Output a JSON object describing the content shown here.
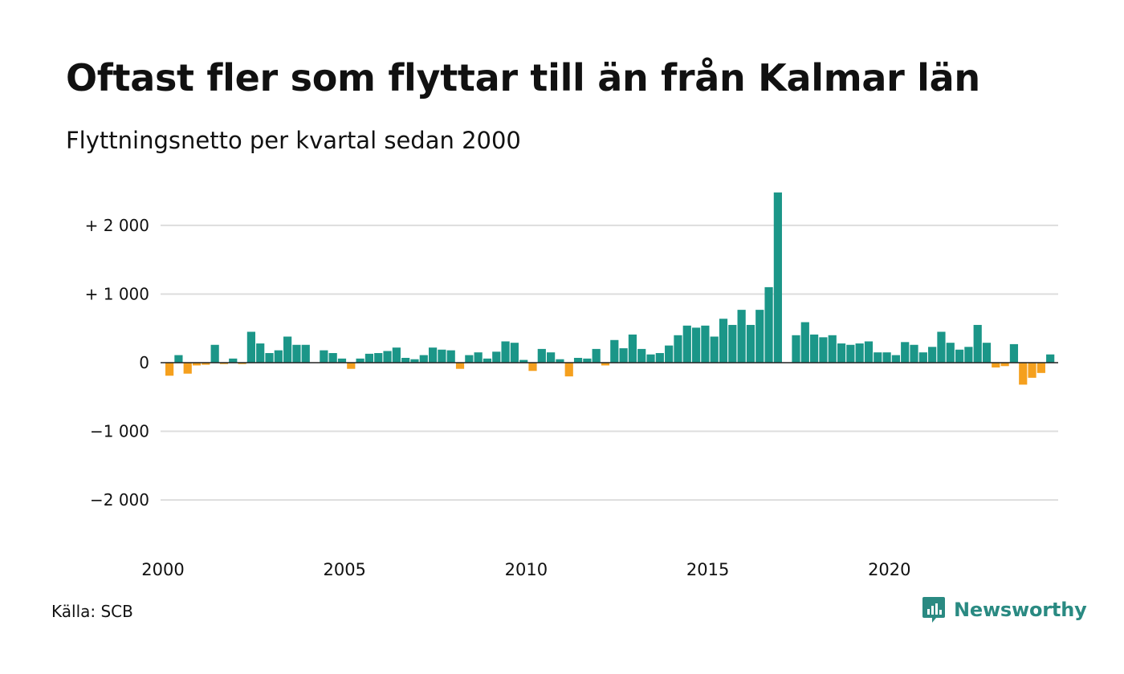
{
  "title": "Oftast fler som flyttar till än från Kalmar län",
  "subtitle": "Flyttningsnetto per kvartal sedan 2000",
  "source": "Källa: SCB",
  "brand": {
    "name": "Newsworthy",
    "icon": "newsworthy-logo-icon",
    "color": "#2a8a82"
  },
  "colors": {
    "positive": "#1b9688",
    "negative": "#f5a01e",
    "grid": "#dddddd",
    "zero_line": "#222222"
  },
  "chart_data": {
    "type": "bar",
    "title": "Oftast fler som flyttar till än från Kalmar län",
    "subtitle": "Flyttningsnetto per kvartal sedan 2000",
    "xlabel": "",
    "ylabel": "",
    "x_start": "2000 Q1",
    "x_ticks": [
      {
        "label": "2000",
        "index": 0
      },
      {
        "label": "2005",
        "index": 20
      },
      {
        "label": "2010",
        "index": 40
      },
      {
        "label": "2015",
        "index": 60
      },
      {
        "label": "2020",
        "index": 80
      }
    ],
    "y_ticks": [
      {
        "label": "+ 2 000",
        "value": 2000
      },
      {
        "label": "+ 1 000",
        "value": 1000
      },
      {
        "label": "0",
        "value": 0
      },
      {
        "label": "−1 000",
        "value": -1000
      },
      {
        "label": "−2 000",
        "value": -2000
      }
    ],
    "ylim": [
      -2500,
      2500
    ],
    "grid": true,
    "values": [
      -190,
      110,
      -160,
      -40,
      -30,
      260,
      -20,
      60,
      -20,
      450,
      280,
      140,
      180,
      380,
      260,
      260,
      0,
      180,
      140,
      60,
      -90,
      60,
      130,
      140,
      170,
      220,
      70,
      50,
      110,
      220,
      190,
      180,
      -90,
      110,
      150,
      60,
      160,
      310,
      290,
      40,
      -120,
      200,
      150,
      50,
      -200,
      70,
      60,
      200,
      -40,
      330,
      210,
      410,
      200,
      120,
      140,
      250,
      400,
      540,
      510,
      540,
      380,
      640,
      550,
      770,
      550,
      770,
      1100,
      2480,
      0,
      400,
      590,
      410,
      370,
      400,
      280,
      260,
      280,
      310,
      150,
      150,
      110,
      300,
      260,
      150,
      230,
      450,
      290,
      190,
      230,
      550,
      290,
      -70,
      -50,
      270,
      -320,
      -220,
      -150,
      120
    ]
  }
}
